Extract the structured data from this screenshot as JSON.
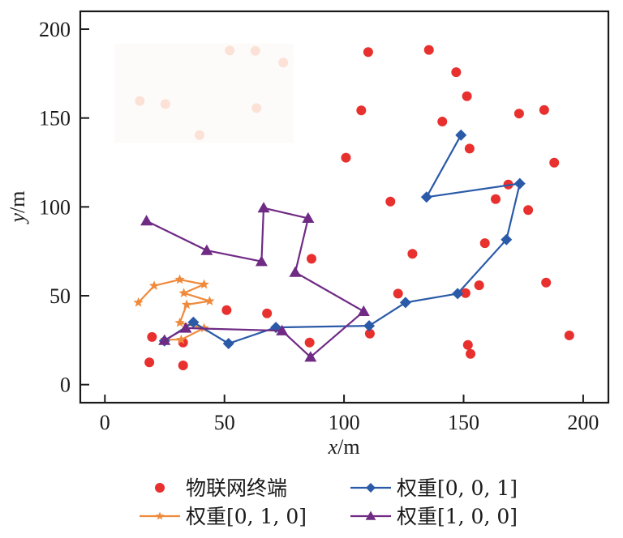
{
  "chart_data": {
    "type": "scatter",
    "title": "",
    "xlabel": "x/m",
    "ylabel": "y/m",
    "xlabel_var": "x",
    "ylabel_var": "y",
    "label_unit": "/m",
    "xlim": [
      -10,
      210
    ],
    "ylim": [
      -10,
      210
    ],
    "xticks": [
      0,
      50,
      100,
      150,
      200
    ],
    "yticks": [
      0,
      50,
      100,
      150,
      200
    ],
    "xtick_labels": [
      "0",
      "50",
      "100",
      "150",
      "200"
    ],
    "ytick_labels": [
      "0",
      "50",
      "100",
      "150",
      "200"
    ],
    "grid": false,
    "legend_position": "bottom",
    "colors": {
      "terminals": "#e8302e",
      "w001": "#2a5aa8",
      "w010": "#ef8a3c",
      "w100": "#6f2a84",
      "faded": "#fbe1d6",
      "faded_bg": "#fdfbfa",
      "axis": "#1a1a1a"
    },
    "series": [
      {
        "name": "物联网终端",
        "kind": "scatter",
        "marker": "circle",
        "color_key": "terminals",
        "points": [
          [
            110.1,
            187.1
          ],
          [
            135.5,
            188.3
          ],
          [
            146.9,
            175.8
          ],
          [
            151.4,
            162.3
          ],
          [
            107.2,
            154.3
          ],
          [
            141.1,
            148.0
          ],
          [
            173.2,
            152.5
          ],
          [
            183.7,
            154.5
          ],
          [
            152.5,
            132.8
          ],
          [
            100.8,
            127.7
          ],
          [
            187.9,
            124.9
          ],
          [
            168.7,
            112.6
          ],
          [
            119.4,
            103.0
          ],
          [
            163.4,
            104.4
          ],
          [
            177.0,
            98.2
          ],
          [
            158.9,
            79.6
          ],
          [
            128.6,
            73.6
          ],
          [
            86.4,
            70.8
          ],
          [
            156.5,
            55.9
          ],
          [
            122.6,
            51.2
          ],
          [
            150.8,
            51.5
          ],
          [
            184.5,
            57.4
          ],
          [
            50.9,
            41.9
          ],
          [
            67.8,
            40.1
          ],
          [
            19.7,
            26.8
          ],
          [
            32.7,
            23.7
          ],
          [
            85.6,
            23.7
          ],
          [
            110.8,
            28.7
          ],
          [
            194.2,
            27.7
          ],
          [
            151.8,
            22.3
          ],
          [
            152.9,
            17.3
          ],
          [
            18.6,
            12.5
          ],
          [
            32.7,
            10.8
          ]
        ]
      },
      {
        "name": "权重[0, 0, 1]",
        "kind": "line",
        "marker": "diamond",
        "color_key": "w001",
        "points": [
          [
            24.9,
            24.6
          ],
          [
            37.0,
            35.1
          ],
          [
            51.7,
            23.1
          ],
          [
            71.5,
            32.2
          ],
          [
            110.5,
            33.1
          ],
          [
            125.7,
            46.2
          ],
          [
            147.5,
            51.2
          ],
          [
            167.9,
            81.6
          ],
          [
            173.5,
            113.1
          ],
          [
            134.5,
            105.5
          ],
          [
            148.9,
            140.4
          ]
        ]
      },
      {
        "name": "权重[0, 1, 0]",
        "kind": "line",
        "marker": "star",
        "color_key": "w010",
        "points": [
          [
            14.0,
            46.2
          ],
          [
            20.6,
            55.6
          ],
          [
            31.3,
            59.1
          ],
          [
            41.5,
            56.4
          ],
          [
            33.0,
            51.5
          ],
          [
            43.8,
            47.0
          ],
          [
            34.2,
            45.0
          ],
          [
            31.3,
            34.8
          ],
          [
            41.5,
            31.8
          ],
          [
            31.9,
            25.3
          ],
          [
            25.1,
            25.3
          ]
        ]
      },
      {
        "name": "权重[1, 0, 0]",
        "kind": "line",
        "marker": "triangle",
        "color_key": "w100",
        "points": [
          [
            17.4,
            92.1
          ],
          [
            42.6,
            75.5
          ],
          [
            65.5,
            69.3
          ],
          [
            66.4,
            99.4
          ],
          [
            85.0,
            93.6
          ],
          [
            79.6,
            63.2
          ],
          [
            108.2,
            41.2
          ],
          [
            86.0,
            15.5
          ],
          [
            74.1,
            30.3
          ],
          [
            33.8,
            31.8
          ],
          [
            24.9,
            24.9
          ]
        ]
      }
    ],
    "faded_points": [
      [
        14.6,
        159.6
      ],
      [
        25.3,
        157.9
      ],
      [
        39.6,
        140.4
      ],
      [
        52.2,
        188.0
      ],
      [
        62.9,
        187.8
      ],
      [
        74.6,
        181.2
      ],
      [
        63.4,
        155.6
      ]
    ],
    "faded_region": {
      "x": [
        4,
        79
      ],
      "y": [
        136,
        192
      ]
    },
    "legend": [
      {
        "label": "物联网终端",
        "series_index": 0
      },
      {
        "label": "权重[0, 0, 1]",
        "series_index": 1
      },
      {
        "label": "权重[0, 1, 0]",
        "series_index": 2
      },
      {
        "label": "权重[1, 0, 0]",
        "series_index": 3
      }
    ]
  }
}
